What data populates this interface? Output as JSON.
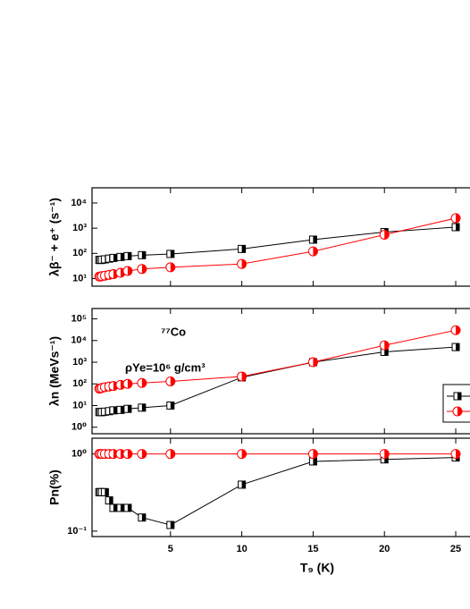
{
  "chart_data": [
    {
      "type": "line",
      "y_label": "λβ⁻ + e⁺ (s⁻¹)",
      "log_y": true,
      "x": [
        0.01,
        0.1,
        0.2,
        0.4,
        0.7,
        1,
        1.5,
        2,
        3,
        5,
        10,
        15,
        20,
        25
      ],
      "xlim": [
        -0.5,
        26
      ],
      "ylim": [
        5,
        40000
      ],
      "yticks": [
        {
          "value": 10,
          "label": "10¹"
        },
        {
          "value": 100,
          "label": "10²"
        },
        {
          "value": 1000,
          "label": "10³"
        },
        {
          "value": 10000,
          "label": "10⁴"
        }
      ],
      "series": [
        {
          "color": "#000000",
          "marker": "square",
          "values": [
            55,
            55,
            56,
            58,
            62,
            66,
            72,
            78,
            85,
            95,
            150,
            350,
            700,
            1100
          ]
        },
        {
          "color": "#ff0000",
          "marker": "circle",
          "values": [
            12,
            12,
            12.5,
            13,
            14,
            15,
            17,
            20,
            24,
            28,
            38,
            120,
            550,
            2500
          ]
        }
      ]
    },
    {
      "type": "line",
      "y_label": "λn (MeVs⁻¹)",
      "log_y": true,
      "annotations": [
        "⁷⁷Co",
        "ρYe=10⁶ g/cm³"
      ],
      "x": [
        0.01,
        0.1,
        0.2,
        0.4,
        0.7,
        1,
        1.5,
        2,
        3,
        5,
        10,
        15,
        20,
        25
      ],
      "xlim": [
        -0.5,
        26
      ],
      "ylim": [
        0.5,
        300000
      ],
      "yticks": [
        {
          "value": 1,
          "label": "10⁰"
        },
        {
          "value": 10,
          "label": "10¹"
        },
        {
          "value": 100,
          "label": "10²"
        },
        {
          "value": 1000,
          "label": "10³"
        },
        {
          "value": 10000,
          "label": "10⁴"
        },
        {
          "value": 100000,
          "label": "10⁵"
        }
      ],
      "series": [
        {
          "color": "#000000",
          "marker": "square",
          "values": [
            5,
            5,
            5,
            5.2,
            5.5,
            6,
            6.3,
            7,
            8,
            10,
            200,
            1000,
            3000,
            5000
          ]
        },
        {
          "color": "#ff0000",
          "marker": "circle",
          "values": [
            60,
            62,
            65,
            70,
            75,
            80,
            90,
            100,
            110,
            130,
            220,
            1000,
            6000,
            30000
          ]
        }
      ]
    },
    {
      "type": "line",
      "y_label": "Pn(%)",
      "x_label": "T₉ (K)",
      "log_y": true,
      "x": [
        0.01,
        0.1,
        0.2,
        0.4,
        0.7,
        1,
        1.5,
        2,
        3,
        5,
        10,
        15,
        20,
        25
      ],
      "xlim": [
        -0.5,
        26
      ],
      "ylim": [
        0.085,
        1.6
      ],
      "xticks": [
        5,
        10,
        15,
        20,
        25
      ],
      "yticks": [
        {
          "value": 0.1,
          "label": "10⁻¹"
        },
        {
          "value": 1,
          "label": "10⁰"
        }
      ],
      "series": [
        {
          "color": "#000000",
          "marker": "square",
          "values": [
            0.32,
            0.32,
            0.32,
            0.32,
            0.25,
            0.2,
            0.2,
            0.2,
            0.15,
            0.12,
            0.4,
            0.8,
            0.85,
            0.9
          ]
        },
        {
          "color": "#ff0000",
          "marker": "circle",
          "values": [
            1,
            1,
            1,
            1,
            1,
            1,
            1,
            1,
            1,
            1,
            1,
            1,
            1,
            1
          ]
        }
      ]
    }
  ]
}
